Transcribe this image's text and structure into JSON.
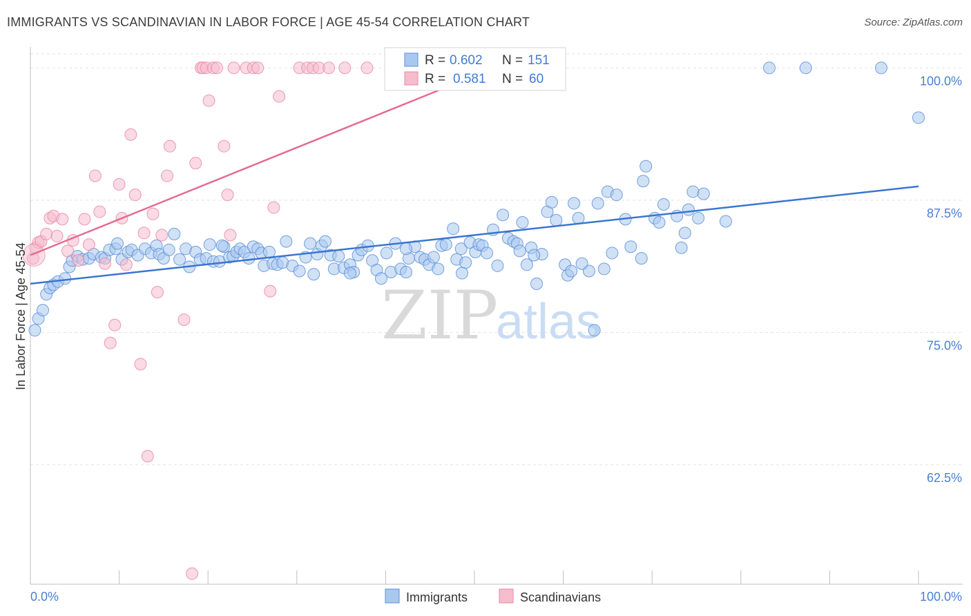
{
  "title": "IMMIGRANTS VS SCANDINAVIAN IN LABOR FORCE | AGE 45-54 CORRELATION CHART",
  "source": "Source: ZipAtlas.com",
  "watermark": {
    "zip": "ZIP",
    "atlas": "atlas"
  },
  "legend_top": {
    "r_label": "R = ",
    "n_label": "N = ",
    "rows": [
      {
        "r": "0.602",
        "n": "151"
      },
      {
        "r": "0.581",
        "n": "60"
      }
    ]
  },
  "chart_data": {
    "type": "scatter",
    "ylabel": "In Labor Force | Age 45-54",
    "xlabel": "",
    "x_ticks": [
      "0.0%",
      "100.0%"
    ],
    "y_ticks": [
      {
        "value": 62.5,
        "label": "62.5%"
      },
      {
        "value": 75.0,
        "label": "75.0%"
      },
      {
        "value": 87.5,
        "label": "87.5%"
      },
      {
        "value": 100.0,
        "label": "100.0%"
      }
    ],
    "xlim": [
      0,
      100
    ],
    "ylim": [
      51.2,
      102.5
    ],
    "grid": true,
    "legend_position": "top-center",
    "colors": {
      "blue_fill": "#a9c8ef",
      "blue_stroke": "#5b8fd8",
      "blue_line": "#3a75d0",
      "pink_fill": "#f6bccd",
      "pink_stroke": "#e888a6",
      "pink_line": "#e46b92"
    },
    "series": [
      {
        "name": "Immigrants",
        "trend": {
          "x": [
            0,
            100
          ],
          "y": [
            79.6,
            88.8
          ]
        },
        "points": [
          [
            0.5,
            75.2
          ],
          [
            0.9,
            76.3
          ],
          [
            1.4,
            77.1
          ],
          [
            1.8,
            78.6
          ],
          [
            2.2,
            79.2
          ],
          [
            2.6,
            79.5
          ],
          [
            3.1,
            79.8
          ],
          [
            3.9,
            80.1
          ],
          [
            4.4,
            81.2
          ],
          [
            4.7,
            81.8
          ],
          [
            5.3,
            82.2
          ],
          [
            5.9,
            81.9
          ],
          [
            6.6,
            82.0
          ],
          [
            7.1,
            82.4
          ],
          [
            8.0,
            82.1
          ],
          [
            8.4,
            82.0
          ],
          [
            8.9,
            82.8
          ],
          [
            9.6,
            82.9
          ],
          [
            9.8,
            83.4
          ],
          [
            10.3,
            81.9
          ],
          [
            11.0,
            82.6
          ],
          [
            11.4,
            82.8
          ],
          [
            12.1,
            82.3
          ],
          [
            12.9,
            82.9
          ],
          [
            13.6,
            82.5
          ],
          [
            14.2,
            83.2
          ],
          [
            14.5,
            82.4
          ],
          [
            15.0,
            82.0
          ],
          [
            15.6,
            82.8
          ],
          [
            16.2,
            84.3
          ],
          [
            16.8,
            81.9
          ],
          [
            17.5,
            82.9
          ],
          [
            17.9,
            81.2
          ],
          [
            18.6,
            82.6
          ],
          [
            19.1,
            81.9
          ],
          [
            19.8,
            82.0
          ],
          [
            20.2,
            83.3
          ],
          [
            20.6,
            81.7
          ],
          [
            21.3,
            81.7
          ],
          [
            21.8,
            83.1
          ],
          [
            22.4,
            82.1
          ],
          [
            22.8,
            82.2
          ],
          [
            23.2,
            82.6
          ],
          [
            23.6,
            82.9
          ],
          [
            24.1,
            82.6
          ],
          [
            24.6,
            82.0
          ],
          [
            25.1,
            83.1
          ],
          [
            25.6,
            82.9
          ],
          [
            26.0,
            82.5
          ],
          [
            26.3,
            81.3
          ],
          [
            26.9,
            82.6
          ],
          [
            27.3,
            81.5
          ],
          [
            27.8,
            81.4
          ],
          [
            28.4,
            81.6
          ],
          [
            28.8,
            83.6
          ],
          [
            29.5,
            81.3
          ],
          [
            30.3,
            80.8
          ],
          [
            31.0,
            82.1
          ],
          [
            31.5,
            83.4
          ],
          [
            31.9,
            80.5
          ],
          [
            32.3,
            82.4
          ],
          [
            32.8,
            83.2
          ],
          [
            33.2,
            83.6
          ],
          [
            33.8,
            82.3
          ],
          [
            34.2,
            81.0
          ],
          [
            34.7,
            82.2
          ],
          [
            35.3,
            81.1
          ],
          [
            36.0,
            81.4
          ],
          [
            36.4,
            80.7
          ],
          [
            36.9,
            82.3
          ],
          [
            37.3,
            82.8
          ],
          [
            38.0,
            83.2
          ],
          [
            38.5,
            81.8
          ],
          [
            39.0,
            80.9
          ],
          [
            39.5,
            80.1
          ],
          [
            40.1,
            82.5
          ],
          [
            40.6,
            80.7
          ],
          [
            41.1,
            83.4
          ],
          [
            41.7,
            81.0
          ],
          [
            42.3,
            80.7
          ],
          [
            42.6,
            82.0
          ],
          [
            43.3,
            83.1
          ],
          [
            43.9,
            82.1
          ],
          [
            44.4,
            81.9
          ],
          [
            44.9,
            81.4
          ],
          [
            45.4,
            82.1
          ],
          [
            45.9,
            81.0
          ],
          [
            46.3,
            83.2
          ],
          [
            46.8,
            83.3
          ],
          [
            47.6,
            84.8
          ],
          [
            48.0,
            81.9
          ],
          [
            48.5,
            82.9
          ],
          [
            49.0,
            81.6
          ],
          [
            49.5,
            83.5
          ],
          [
            50.1,
            82.6
          ],
          [
            50.5,
            83.3
          ],
          [
            50.9,
            83.2
          ],
          [
            51.4,
            82.5
          ],
          [
            52.1,
            84.7
          ],
          [
            52.6,
            81.3
          ],
          [
            53.2,
            86.1
          ],
          [
            53.8,
            83.9
          ],
          [
            54.4,
            83.6
          ],
          [
            54.8,
            83.4
          ],
          [
            55.1,
            82.7
          ],
          [
            55.4,
            85.4
          ],
          [
            55.9,
            81.4
          ],
          [
            56.4,
            83.0
          ],
          [
            57.0,
            79.6
          ],
          [
            57.6,
            82.4
          ],
          [
            58.2,
            86.4
          ],
          [
            58.7,
            87.3
          ],
          [
            59.2,
            85.6
          ],
          [
            60.2,
            81.4
          ],
          [
            60.5,
            80.4
          ],
          [
            60.9,
            80.8
          ],
          [
            61.2,
            87.2
          ],
          [
            61.7,
            85.8
          ],
          [
            62.9,
            80.8
          ],
          [
            63.5,
            75.2
          ],
          [
            63.9,
            87.2
          ],
          [
            64.6,
            81.0
          ],
          [
            65.0,
            88.3
          ],
          [
            65.5,
            82.5
          ],
          [
            66.0,
            88.0
          ],
          [
            67.0,
            85.7
          ],
          [
            67.6,
            83.1
          ],
          [
            68.8,
            82.0
          ],
          [
            69.0,
            89.3
          ],
          [
            69.3,
            90.7
          ],
          [
            70.3,
            85.8
          ],
          [
            70.8,
            85.4
          ],
          [
            71.3,
            87.1
          ],
          [
            72.8,
            86.0
          ],
          [
            73.3,
            83.0
          ],
          [
            73.7,
            84.4
          ],
          [
            74.1,
            86.6
          ],
          [
            74.6,
            88.3
          ],
          [
            75.2,
            85.8
          ],
          [
            75.8,
            88.1
          ],
          [
            78.3,
            85.5
          ],
          [
            83.2,
            100.0
          ],
          [
            87.3,
            100.0
          ],
          [
            95.8,
            100.0
          ],
          [
            100.0,
            95.3
          ],
          [
            21.6,
            83.2
          ],
          [
            36.0,
            80.6
          ],
          [
            42.3,
            82.9
          ],
          [
            48.6,
            80.6
          ],
          [
            56.7,
            82.3
          ],
          [
            62.1,
            81.5
          ]
        ]
      },
      {
        "name": "Scandinavians",
        "trend": {
          "x": [
            0,
            53.4
          ],
          "y": [
            82.3,
            100.4
          ]
        },
        "points": [
          [
            0.3,
            82.0
          ],
          [
            0.6,
            83.0
          ],
          [
            0.9,
            83.5
          ],
          [
            1.2,
            83.6
          ],
          [
            1.8,
            84.3
          ],
          [
            2.2,
            85.8
          ],
          [
            2.6,
            86.0
          ],
          [
            3.0,
            84.1
          ],
          [
            3.6,
            85.7
          ],
          [
            4.2,
            82.7
          ],
          [
            4.8,
            83.7
          ],
          [
            5.4,
            81.8
          ],
          [
            6.1,
            85.7
          ],
          [
            6.6,
            83.3
          ],
          [
            7.3,
            89.8
          ],
          [
            7.8,
            86.4
          ],
          [
            8.4,
            81.5
          ],
          [
            9.0,
            74.0
          ],
          [
            9.5,
            75.7
          ],
          [
            10.0,
            89.0
          ],
          [
            10.3,
            85.8
          ],
          [
            10.8,
            81.4
          ],
          [
            11.3,
            93.7
          ],
          [
            11.8,
            88.0
          ],
          [
            12.4,
            72.0
          ],
          [
            12.8,
            84.4
          ],
          [
            13.2,
            63.3
          ],
          [
            13.8,
            86.2
          ],
          [
            14.3,
            78.8
          ],
          [
            14.8,
            84.2
          ],
          [
            15.4,
            89.8
          ],
          [
            15.7,
            92.6
          ],
          [
            17.3,
            76.2
          ],
          [
            18.2,
            52.2
          ],
          [
            18.6,
            91.0
          ],
          [
            19.2,
            100.0
          ],
          [
            19.4,
            100.0
          ],
          [
            19.8,
            100.0
          ],
          [
            20.1,
            96.9
          ],
          [
            20.6,
            100.0
          ],
          [
            21.0,
            100.0
          ],
          [
            21.8,
            92.6
          ],
          [
            22.2,
            88.0
          ],
          [
            22.5,
            84.2
          ],
          [
            22.9,
            100.0
          ],
          [
            24.3,
            100.0
          ],
          [
            25.1,
            100.0
          ],
          [
            25.6,
            100.0
          ],
          [
            27.0,
            78.9
          ],
          [
            27.4,
            86.8
          ],
          [
            28.0,
            97.3
          ],
          [
            30.3,
            100.0
          ],
          [
            31.2,
            100.0
          ],
          [
            31.8,
            100.0
          ],
          [
            32.5,
            100.0
          ],
          [
            33.6,
            100.0
          ],
          [
            35.4,
            100.0
          ],
          [
            37.9,
            100.0
          ],
          [
            44.1,
            100.0
          ],
          [
            47.9,
            100.0
          ]
        ]
      }
    ]
  },
  "legend_bottom": [
    "Immigrants",
    "Scandinavians"
  ]
}
